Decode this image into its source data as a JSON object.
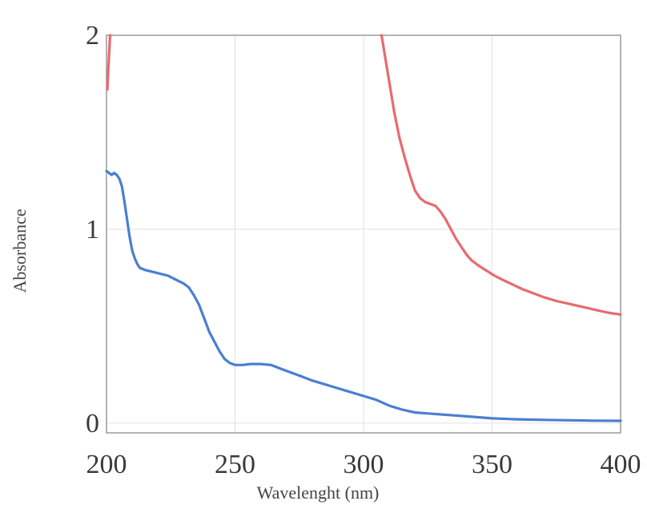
{
  "chart_data": {
    "type": "line",
    "title": "",
    "xlabel": "Wavelenght (nm)",
    "ylabel": "Absorbance",
    "xlim": [
      200,
      400
    ],
    "ylim": [
      -0.05,
      2
    ],
    "x_ticks": [
      200,
      250,
      300,
      350,
      400
    ],
    "y_ticks": [
      0,
      1,
      2
    ],
    "grid": true,
    "legend": "none",
    "series": [
      {
        "color": "#e86a70",
        "segments": [
          [
            [
              200.3,
              1.72
            ],
            [
              200.6,
              1.8
            ],
            [
              201.0,
              1.9
            ],
            [
              201.4,
              2.0
            ]
          ],
          [
            [
              307.0,
              2.0
            ],
            [
              308.0,
              1.92
            ],
            [
              310.0,
              1.76
            ],
            [
              312.0,
              1.6
            ],
            [
              314.0,
              1.47
            ],
            [
              316.0,
              1.37
            ],
            [
              318.0,
              1.28
            ],
            [
              320.0,
              1.2
            ],
            [
              322.0,
              1.16
            ],
            [
              324.0,
              1.14
            ],
            [
              326.0,
              1.13
            ],
            [
              328.0,
              1.12
            ],
            [
              330.0,
              1.09
            ],
            [
              332.0,
              1.05
            ],
            [
              334.0,
              1.0
            ],
            [
              336.0,
              0.95
            ],
            [
              338.0,
              0.91
            ],
            [
              340.0,
              0.87
            ],
            [
              342.0,
              0.84
            ],
            [
              345.0,
              0.81
            ],
            [
              348.0,
              0.785
            ],
            [
              351.0,
              0.76
            ],
            [
              354.0,
              0.74
            ],
            [
              358.0,
              0.715
            ],
            [
              362.0,
              0.69
            ],
            [
              366.0,
              0.67
            ],
            [
              370.0,
              0.65
            ],
            [
              375.0,
              0.63
            ],
            [
              380.0,
              0.615
            ],
            [
              385.0,
              0.6
            ],
            [
              390.0,
              0.585
            ],
            [
              395.0,
              0.57
            ],
            [
              400.0,
              0.56
            ]
          ]
        ]
      },
      {
        "color": "#4a7fd0",
        "segments": [
          [
            [
              200.0,
              1.3
            ],
            [
              201.0,
              1.29
            ],
            [
              202.0,
              1.28
            ],
            [
              203.0,
              1.29
            ],
            [
              204.0,
              1.28
            ],
            [
              205.0,
              1.26
            ],
            [
              206.0,
              1.22
            ],
            [
              207.0,
              1.14
            ],
            [
              208.0,
              1.05
            ],
            [
              209.0,
              0.96
            ],
            [
              210.0,
              0.89
            ],
            [
              211.0,
              0.85
            ],
            [
              212.0,
              0.82
            ],
            [
              213.0,
              0.8
            ],
            [
              215.0,
              0.79
            ],
            [
              218.0,
              0.78
            ],
            [
              221.0,
              0.77
            ],
            [
              224.0,
              0.76
            ],
            [
              227.0,
              0.74
            ],
            [
              230.0,
              0.72
            ],
            [
              232.0,
              0.7
            ],
            [
              234.0,
              0.66
            ],
            [
              236.0,
              0.61
            ],
            [
              238.0,
              0.54
            ],
            [
              240.0,
              0.47
            ],
            [
              242.0,
              0.42
            ],
            [
              244.0,
              0.37
            ],
            [
              246.0,
              0.33
            ],
            [
              248.0,
              0.31
            ],
            [
              250.0,
              0.3
            ],
            [
              253.0,
              0.3
            ],
            [
              256.0,
              0.305
            ],
            [
              260.0,
              0.305
            ],
            [
              264.0,
              0.3
            ],
            [
              268.0,
              0.28
            ],
            [
              272.0,
              0.26
            ],
            [
              276.0,
              0.24
            ],
            [
              280.0,
              0.22
            ],
            [
              285.0,
              0.2
            ],
            [
              290.0,
              0.18
            ],
            [
              295.0,
              0.16
            ],
            [
              300.0,
              0.14
            ],
            [
              305.0,
              0.12
            ],
            [
              310.0,
              0.09
            ],
            [
              315.0,
              0.07
            ],
            [
              320.0,
              0.055
            ],
            [
              325.0,
              0.05
            ],
            [
              330.0,
              0.045
            ],
            [
              335.0,
              0.04
            ],
            [
              340.0,
              0.035
            ],
            [
              345.0,
              0.03
            ],
            [
              350.0,
              0.025
            ],
            [
              360.0,
              0.02
            ],
            [
              370.0,
              0.017
            ],
            [
              380.0,
              0.015
            ],
            [
              390.0,
              0.013
            ],
            [
              400.0,
              0.012
            ]
          ]
        ]
      }
    ]
  }
}
